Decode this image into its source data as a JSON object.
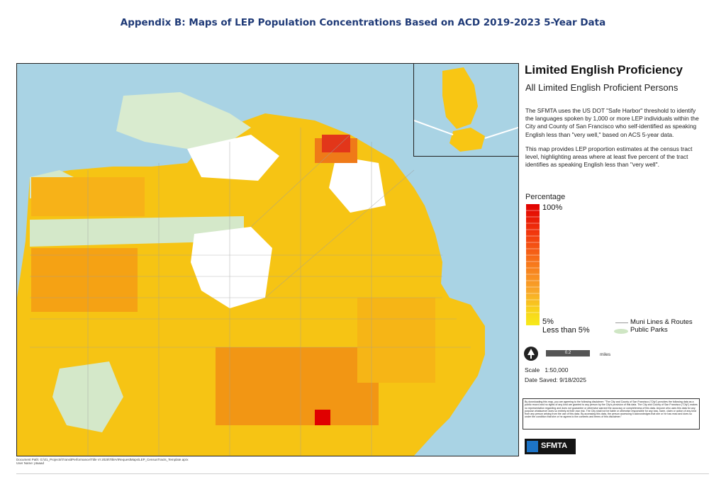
{
  "page": {
    "title": "Appendix B: Maps of LEP Population Concentrations Based on ACD 2019-2023 5-Year Data"
  },
  "legend": {
    "title": "Limited English Proficiency",
    "subtitle": "All Limited English Proficient Persons",
    "paragraph1": "The SFMTA uses the US DOT \"Safe Harbor\" threshold to identify the languages spoken by 1,000 or more LEP individuals within the City and County of San Francisco who self-identified as speaking English less than \"very well,\" based on ACS 5-year data.",
    "paragraph2": "This map provides LEP proportion estimates at the census tract level, highlighting areas where at least five percent of the tract identifies as speaking English less than \"very well\".",
    "percentage_label": "Percentage",
    "ramp_top": "100%",
    "ramp_bottom": "5%",
    "less_than": "Less than 5%",
    "muni_lines": "Muni Lines & Routes",
    "public_parks": "Public Parks",
    "scale_bar_value": "0.2",
    "scale_bar_units": "miles",
    "scale_label": "Scale",
    "scale_value": "1:50,000",
    "date_saved_label": "Date Saved:",
    "date_saved": "9/18/2025",
    "disclaimer": "By downloading this map, you are agreeing to the following disclaimer: \"The City and County of San Francisco (\"City\") provides the following data as a public record and no rights of any kind are granted to any person by the City's provision of this data. The City and County of San Francisco (\"City\") makes no representation regarding and does not guarantee or otherwise warrant the accuracy or completeness of this data. Anyone who uses this data for any purpose whatsoever does so entirely at their own risk. The City shall not be liable or otherwise responsible for any loss, harm, claim or action of any kind from any person arising from the use of this data. By accessing this data, the person accessing it acknowledges that she or he has read and does so under the condition that she or he agrees to the contents and terms of this disclaimer.\"",
    "logo_text": "SFMTA"
  },
  "footer": {
    "document_path": "Document Path: G:\\01_Projects\\TransitPerformance\\Title VI 2025\\TitleVIRequestMaps\\LEP_CensusTracts_Template.aprx",
    "user_name": "User Name: ptaaad"
  },
  "colors": {
    "water": "#a9d3e4",
    "park": "#cfe6c4",
    "low": "#f8ee1a",
    "high": "#e00000",
    "frame": "#222222"
  }
}
